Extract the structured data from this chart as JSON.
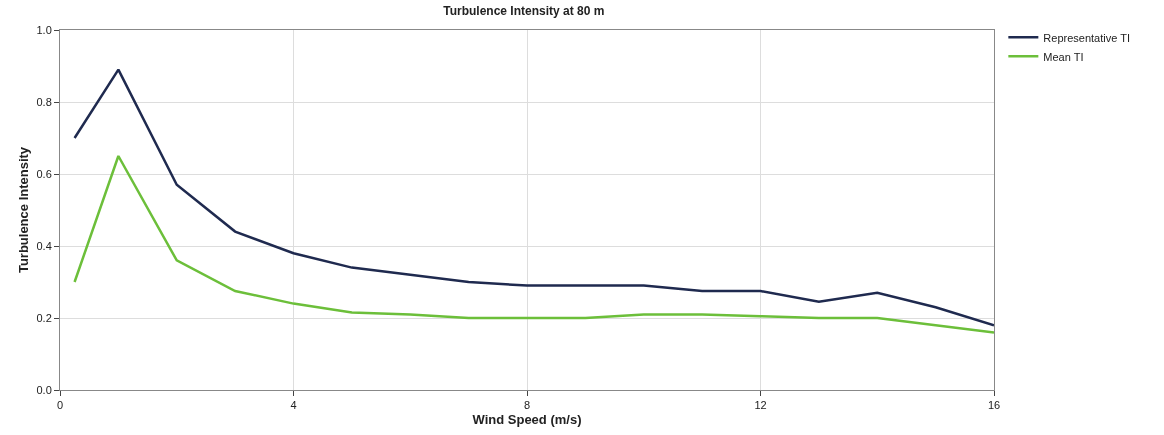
{
  "chart_data": {
    "type": "line",
    "title": "Turbulence Intensity at 80 m",
    "xlabel": "Wind Speed (m/s)",
    "ylabel": "Turbulence Intensity",
    "x": [
      0.25,
      1,
      2,
      3,
      4,
      5,
      6,
      7,
      8,
      9,
      10,
      11,
      12,
      13,
      14,
      15,
      16
    ],
    "series": [
      {
        "name": "Representative TI",
        "color": "#1f2a4f",
        "values": [
          0.7,
          0.89,
          0.57,
          0.44,
          0.38,
          0.34,
          0.32,
          0.3,
          0.29,
          0.29,
          0.29,
          0.275,
          0.275,
          0.245,
          0.27,
          0.23,
          0.18
        ]
      },
      {
        "name": "Mean TI",
        "color": "#6cbf3a",
        "values": [
          0.3,
          0.65,
          0.36,
          0.275,
          0.24,
          0.215,
          0.21,
          0.2,
          0.2,
          0.2,
          0.21,
          0.21,
          0.205,
          0.2,
          0.2,
          0.18,
          0.16
        ]
      }
    ],
    "xlim": [
      0,
      16
    ],
    "xticks": [
      0,
      4,
      8,
      12,
      16
    ],
    "ylim": [
      0,
      1
    ],
    "yticks": [
      {
        "value": 0,
        "label": "0.0"
      },
      {
        "value": 0.2,
        "label": "0.2"
      },
      {
        "value": 0.4,
        "label": "0.4"
      },
      {
        "value": 0.6,
        "label": "0.6"
      },
      {
        "value": 0.8,
        "label": "0.8"
      },
      {
        "value": 1,
        "label": "1.0"
      }
    ],
    "grid": true,
    "legend": "top right",
    "marker": "none",
    "line_style": "solid"
  }
}
